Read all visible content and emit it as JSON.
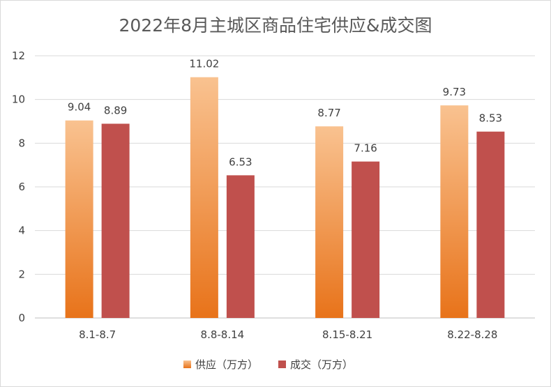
{
  "chart_data": {
    "type": "bar",
    "title": "2022年8月主城区商品住宅供应&成交图",
    "categories": [
      "8.1-8.7",
      "8.8-8.14",
      "8.15-8.21",
      "8.22-8.28"
    ],
    "series": [
      {
        "name": "供应（万方）",
        "values": [
          9.04,
          11.02,
          8.77,
          9.73
        ],
        "color_top": "#f9c290",
        "color_bottom": "#e8731a"
      },
      {
        "name": "成交（万方）",
        "values": [
          8.89,
          6.53,
          7.16,
          8.53
        ],
        "color": "#c0504d"
      }
    ],
    "value_labels": [
      [
        "9.04",
        "11.02",
        "8.77",
        "9.73"
      ],
      [
        "8.89",
        "6.53",
        "7.16",
        "8.53"
      ]
    ],
    "ylim": [
      0,
      12
    ],
    "yticks": [
      0,
      2,
      4,
      6,
      8,
      10,
      12
    ],
    "ytick_labels": [
      "0",
      "2",
      "4",
      "6",
      "8",
      "10",
      "12"
    ],
    "grid": true,
    "legend": "bottom"
  }
}
